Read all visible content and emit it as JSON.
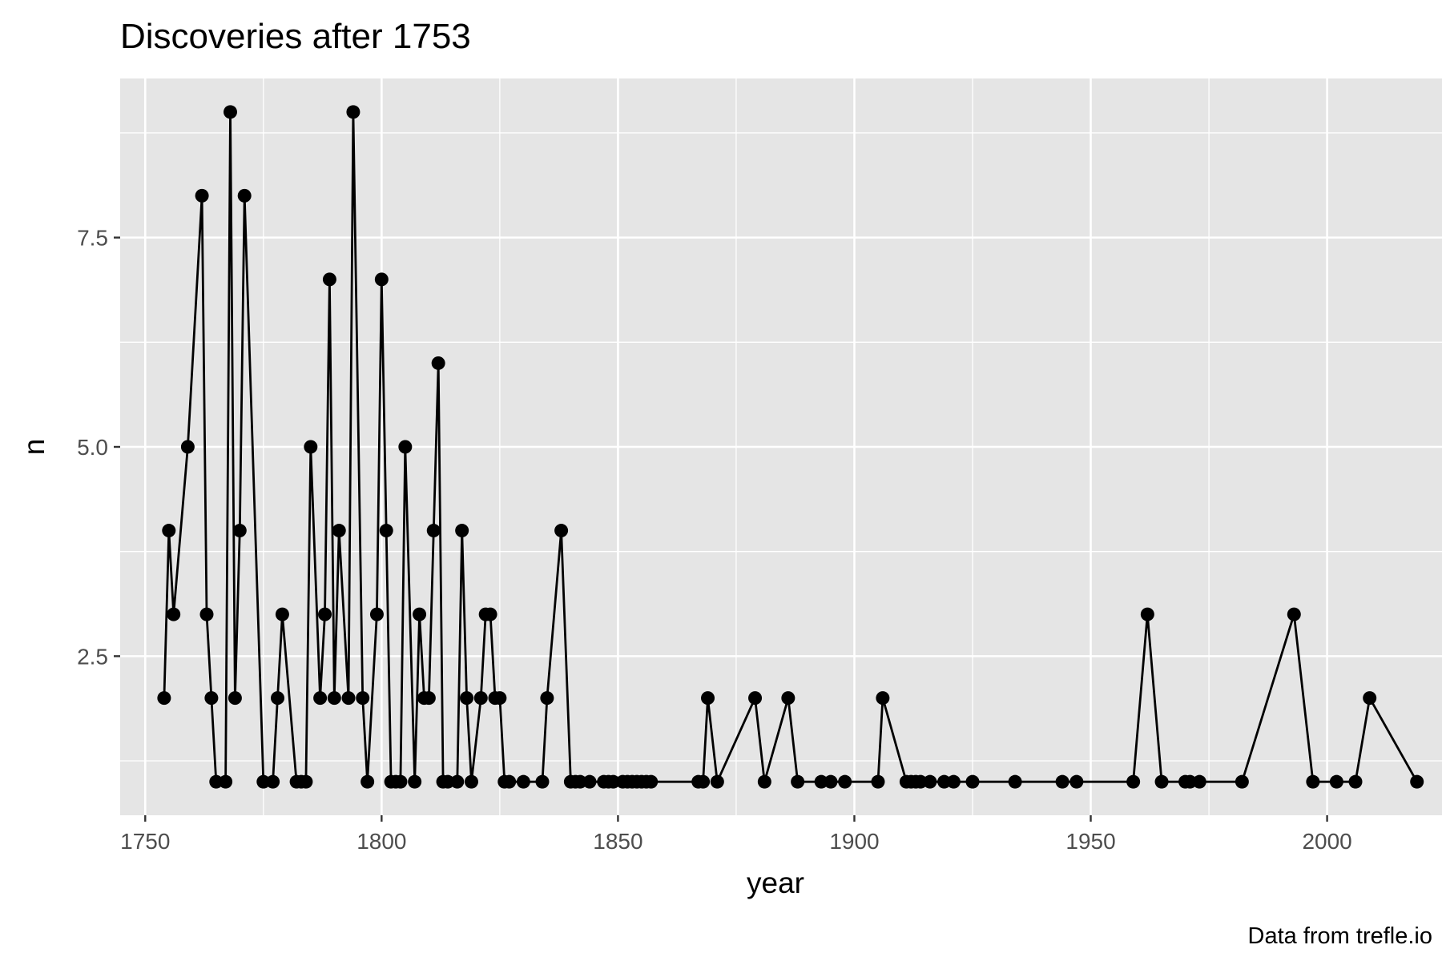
{
  "chart_data": {
    "type": "line",
    "title": "Discoveries after 1753",
    "xlabel": "year",
    "ylabel": "n",
    "caption": "Data from trefle.io",
    "xlim": [
      1744.7,
      2024.3
    ],
    "ylim": [
      0.6,
      9.4
    ],
    "x_ticks": [
      1750,
      1800,
      1850,
      1900,
      1950,
      2000
    ],
    "x_tick_labels": [
      "1750",
      "1800",
      "1850",
      "1900",
      "1950",
      "2000"
    ],
    "y_ticks": [
      2.5,
      5.0,
      7.5
    ],
    "y_tick_labels": [
      "2.5",
      "5.0",
      "7.5"
    ],
    "grid": true,
    "colors": {
      "panel": "#e5e5e5",
      "grid": "#ffffff",
      "line": "#000000",
      "tick_text": "#4d4d4d"
    },
    "series": [
      {
        "x": [
          1754,
          1755,
          1756,
          1759,
          1762,
          1763,
          1764,
          1765,
          1767,
          1768,
          1769,
          1770,
          1771,
          1775,
          1777,
          1778,
          1779,
          1782,
          1783,
          1784,
          1785,
          1787,
          1788,
          1789,
          1790,
          1791,
          1793,
          1794,
          1796,
          1797,
          1799,
          1800,
          1801,
          1802,
          1803,
          1804,
          1805,
          1807,
          1808,
          1809,
          1810,
          1811,
          1812,
          1813,
          1814,
          1816,
          1817,
          1818,
          1819,
          1821,
          1822,
          1823,
          1824,
          1825,
          1826,
          1827,
          1830,
          1834,
          1835,
          1838,
          1840,
          1841,
          1842,
          1844,
          1847,
          1848,
          1849,
          1851,
          1852,
          1853,
          1854,
          1855,
          1856,
          1857,
          1867,
          1868,
          1869,
          1871,
          1879,
          1881,
          1886,
          1888,
          1893,
          1895,
          1898,
          1905,
          1906,
          1911,
          1912,
          1913,
          1914,
          1916,
          1919,
          1921,
          1925,
          1934,
          1944,
          1947,
          1959,
          1962,
          1965,
          1970,
          1971,
          1973,
          1982,
          1993,
          1997,
          2002,
          2006,
          2009,
          2019
        ],
        "y": [
          2,
          4,
          3,
          5,
          8,
          3,
          2,
          1,
          1,
          9,
          2,
          4,
          8,
          1,
          1,
          2,
          3,
          1,
          1,
          1,
          5,
          2,
          3,
          7,
          2,
          4,
          2,
          9,
          2,
          1,
          3,
          7,
          4,
          1,
          1,
          1,
          5,
          1,
          3,
          2,
          2,
          4,
          6,
          1,
          1,
          1,
          4,
          2,
          1,
          2,
          3,
          3,
          2,
          2,
          1,
          1,
          1,
          1,
          2,
          4,
          1,
          1,
          1,
          1,
          1,
          1,
          1,
          1,
          1,
          1,
          1,
          1,
          1,
          1,
          1,
          1,
          2,
          1,
          2,
          1,
          2,
          1,
          1,
          1,
          1,
          1,
          2,
          1,
          1,
          1,
          1,
          1,
          1,
          1,
          1,
          1,
          1,
          1,
          1,
          3,
          1,
          1,
          1,
          1,
          1,
          3,
          1,
          1,
          1,
          2,
          1
        ]
      }
    ]
  }
}
